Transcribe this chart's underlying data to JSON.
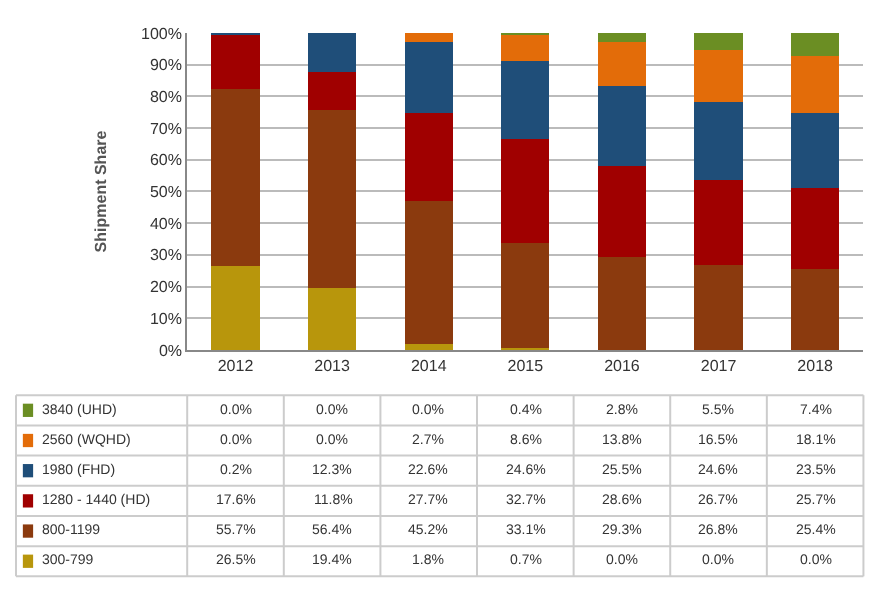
{
  "chart_data": {
    "type": "bar",
    "stacked": true,
    "ylabel": "Shipment Share",
    "categories": [
      "2012",
      "2013",
      "2014",
      "2015",
      "2016",
      "2017",
      "2018"
    ],
    "series": [
      {
        "name": "300-799",
        "color": "#b8960c",
        "values": [
          26.5,
          19.4,
          1.8,
          0.7,
          0.0,
          0.0,
          0.0
        ],
        "value_labels": [
          "26.5%",
          "19.4%",
          "1.8%",
          "0.7%",
          "0.0%",
          "0.0%",
          "0.0%"
        ]
      },
      {
        "name": "800-1199",
        "color": "#8b3a0e",
        "values": [
          55.7,
          56.4,
          45.2,
          33.1,
          29.3,
          26.8,
          25.4
        ],
        "value_labels": [
          "55.7%",
          "56.4%",
          "45.2%",
          "33.1%",
          "29.3%",
          "26.8%",
          "25.4%"
        ]
      },
      {
        "name": "1280 - 1440 (HD)",
        "color": "#a00000",
        "values": [
          17.6,
          11.8,
          27.7,
          32.7,
          28.6,
          26.7,
          25.7
        ],
        "value_labels": [
          "17.6%",
          "11.8%",
          "27.7%",
          "32.7%",
          "28.6%",
          "26.7%",
          "25.7%"
        ]
      },
      {
        "name": "1980 (FHD)",
        "color": "#1f4e79",
        "values": [
          0.2,
          12.3,
          22.6,
          24.6,
          25.5,
          24.6,
          23.5
        ],
        "value_labels": [
          "0.2%",
          "12.3%",
          "22.6%",
          "24.6%",
          "25.5%",
          "24.6%",
          "23.5%"
        ]
      },
      {
        "name": "2560 (WQHD)",
        "color": "#e36c09",
        "values": [
          0.0,
          0.0,
          2.7,
          8.6,
          13.8,
          16.5,
          18.1
        ],
        "value_labels": [
          "0.0%",
          "0.0%",
          "2.7%",
          "8.6%",
          "13.8%",
          "16.5%",
          "18.1%"
        ]
      },
      {
        "name": "3840 (UHD)",
        "color": "#6b8e23",
        "values": [
          0.0,
          0.0,
          0.0,
          0.4,
          2.8,
          5.5,
          7.4
        ],
        "value_labels": [
          "0.0%",
          "0.0%",
          "0.0%",
          "0.4%",
          "2.8%",
          "5.5%",
          "7.4%"
        ]
      }
    ],
    "ylim": [
      0,
      100
    ],
    "yticks": [
      {
        "value": 0,
        "label": "0%"
      },
      {
        "value": 10,
        "label": "10%"
      },
      {
        "value": 20,
        "label": "20%"
      },
      {
        "value": 30,
        "label": "30%"
      },
      {
        "value": 40,
        "label": "40%"
      },
      {
        "value": 50,
        "label": "50%"
      },
      {
        "value": 60,
        "label": "60%"
      },
      {
        "value": 70,
        "label": "70%"
      },
      {
        "value": 80,
        "label": "80%"
      },
      {
        "value": 90,
        "label": "90%"
      },
      {
        "value": 100,
        "label": "100%"
      }
    ],
    "grid": "y",
    "legend": "bottom left"
  }
}
